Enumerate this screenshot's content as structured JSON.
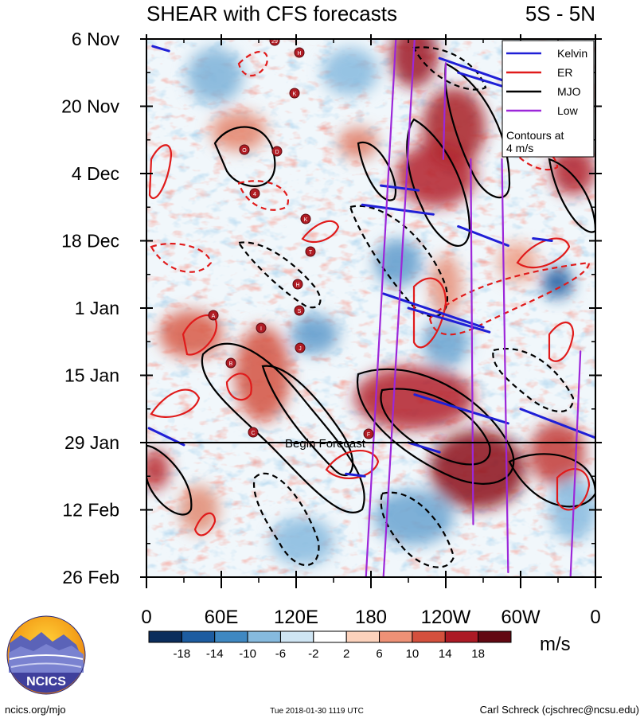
{
  "chart_data": {
    "type": "heatmap",
    "title": "SHEAR with CFS forecasts",
    "region_label": "5S - 5N",
    "y_axis": {
      "ticks": [
        "6 Nov",
        "20 Nov",
        "4 Dec",
        "18 Dec",
        "1 Jan",
        "15 Jan",
        "29 Jan",
        "12 Feb",
        "26 Feb"
      ],
      "day_offsets": [
        0,
        14,
        28,
        42,
        56,
        70,
        84,
        98,
        112
      ],
      "range_days": [
        0,
        112
      ]
    },
    "x_axis": {
      "ticks": [
        "0",
        "60E",
        "120E",
        "180",
        "120W",
        "60W",
        "0"
      ],
      "longitudes": [
        0,
        60,
        120,
        180,
        240,
        300,
        360
      ],
      "range": [
        0,
        360
      ]
    },
    "forecast_start": {
      "label": "Begin Forecast",
      "day": 84
    },
    "colorbar": {
      "tick_labels": [
        "-18",
        "-14",
        "-10",
        "-6",
        "-2",
        "2",
        "6",
        "10",
        "14",
        "18"
      ],
      "colors": [
        "#0b2d5c",
        "#1d5ca0",
        "#3f88c2",
        "#86bade",
        "#cfe5f3",
        "#ffffff",
        "#fcd2bc",
        "#ee9176",
        "#d4503d",
        "#ac1a25",
        "#620812"
      ],
      "units": "m/s"
    },
    "legend": {
      "entries": [
        {
          "label": "Kelvin",
          "color": "#1f1fd6"
        },
        {
          "label": "ER",
          "color": "#e01b1b"
        },
        {
          "label": "MJO",
          "color": "#000000"
        },
        {
          "label": "Low",
          "color": "#9c27d9"
        }
      ],
      "note_line1": "Contours at",
      "note_line2": "4 m/s",
      "placement": "top-right"
    },
    "storm_markers": [
      "29",
      "H",
      "K",
      "O",
      "D",
      "4",
      "K",
      "T",
      "H",
      "S",
      "A",
      "I",
      "J",
      "B",
      "C",
      "F"
    ],
    "series": [
      {
        "name": "Kelvin",
        "color": "#1f1fd6",
        "segments": [
          {
            "from": [
              5,
              1.5
            ],
            "to": [
              18,
              2.5
            ]
          },
          {
            "from": [
              235,
              4
            ],
            "to": [
              290,
              9
            ]
          },
          {
            "from": [
              250,
              7
            ],
            "to": [
              300,
              11
            ]
          },
          {
            "from": [
              188,
              30.5
            ],
            "to": [
              218,
              31.5
            ]
          },
          {
            "from": [
              173,
              34.5
            ],
            "to": [
              230,
              36.5
            ]
          },
          {
            "from": [
              250,
              39
            ],
            "to": [
              290,
              43
            ]
          },
          {
            "from": [
              310,
              41.5
            ],
            "to": [
              325,
              42
            ]
          },
          {
            "from": [
              190,
              53
            ],
            "to": [
              270,
              60
            ]
          },
          {
            "from": [
              210,
              56
            ],
            "to": [
              275,
              61
            ]
          },
          {
            "from": [
              215,
              74
            ],
            "to": [
              290,
              80
            ]
          },
          {
            "from": [
              300,
              77
            ],
            "to": [
              360,
              83
            ]
          },
          {
            "from": [
              2,
              81
            ],
            "to": [
              30,
              84.5
            ]
          },
          {
            "from": [
              210,
              84
            ],
            "to": [
              235,
              86
            ]
          },
          {
            "from": [
              160,
              90.5
            ],
            "to": [
              175,
              91
            ]
          }
        ]
      },
      {
        "name": "Low",
        "color": "#9c27d9",
        "segments": [
          {
            "from": [
              200,
              0
            ],
            "to": [
              176,
              112
            ]
          },
          {
            "from": [
              215,
              0
            ],
            "to": [
              190,
              112
            ]
          },
          {
            "from": [
              240,
              5
            ],
            "to": [
              238,
              25
            ]
          },
          {
            "from": [
              260,
              25
            ],
            "to": [
              262,
              101
            ]
          },
          {
            "from": [
              285,
              25
            ],
            "to": [
              290,
              111
            ]
          },
          {
            "from": [
              348,
              65
            ],
            "to": [
              340,
              112
            ]
          }
        ]
      }
    ]
  },
  "footer": {
    "left": "ncics.org/mjo",
    "center": "Tue 2018-01-30 1119 UTC",
    "right": "Carl Schreck (cjschrec@ncsu.edu)",
    "logo_text": "NCICS"
  }
}
